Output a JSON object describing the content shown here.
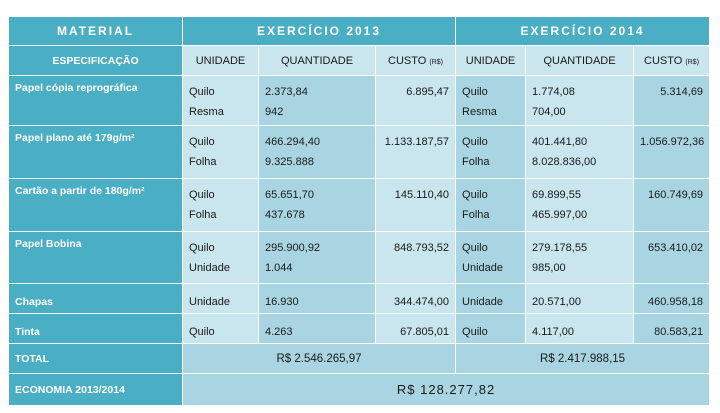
{
  "header": {
    "material": "MATERIAL",
    "year2013": "EXERCÍCIO 2013",
    "year2014": "EXERCÍCIO 2014"
  },
  "columns": {
    "spec": "ESPECIFICAÇÃO",
    "unit": "UNIDADE",
    "qty": "QUANTIDADE",
    "cost": "CUSTO",
    "cost_unit": "(R$)"
  },
  "rows": [
    {
      "label": "Papel cópia reprográfica",
      "u13": [
        "Quilo",
        "Resma"
      ],
      "q13": [
        "2.373,84",
        "942"
      ],
      "c13": "6.895,47",
      "u14": [
        "Quilo",
        "Resma"
      ],
      "q14": [
        "1.774,08",
        "704,00"
      ],
      "c14": "5.314,69"
    },
    {
      "label": "Papel plano até 179g/m²",
      "u13": [
        "Quilo",
        "Folha"
      ],
      "q13": [
        "466.294,40",
        "9.325.888"
      ],
      "c13": "1.133.187,57",
      "u14": [
        "Quilo",
        "Folha"
      ],
      "q14": [
        "401.441,80",
        "8.028.836,00"
      ],
      "c14": "1.056.972,36"
    },
    {
      "label": "Cartão a partir de 180g/m²",
      "u13": [
        "Quilo",
        "Folha"
      ],
      "q13": [
        "65.651,70",
        "437.678"
      ],
      "c13": "145.110,40",
      "u14": [
        "Quilo",
        "Folha"
      ],
      "q14": [
        "69.899,55",
        "465.997,00"
      ],
      "c14": "160.749,69"
    },
    {
      "label": "Papel Bobina",
      "u13": [
        "Quilo",
        "Unidade"
      ],
      "q13": [
        "295.900,92",
        "1.044"
      ],
      "c13": "848.793,52",
      "u14": [
        "Quilo",
        "Unidade"
      ],
      "q14": [
        "279.178,55",
        "985,00"
      ],
      "c14": "653.410,02"
    },
    {
      "label": "Chapas",
      "u13": [
        "Unidade"
      ],
      "q13": [
        "16.930"
      ],
      "c13": "344.474,00",
      "u14": [
        "Unidade"
      ],
      "q14": [
        "20.571,00"
      ],
      "c14": "460.958,18"
    },
    {
      "label": "Tinta",
      "u13": [
        "Quilo"
      ],
      "q13": [
        "4.263"
      ],
      "c13": "67.805,01",
      "u14": [
        "Quilo"
      ],
      "q14": [
        "4.117,00"
      ],
      "c14": "80.583,21"
    }
  ],
  "total": {
    "label": "TOTAL",
    "v2013": "R$ 2.546.265,97",
    "v2014": "R$ 2.417.988,15"
  },
  "economy": {
    "label": "ECONOMIA 2013/2014",
    "value": "R$ 128.277,82"
  },
  "colors": {
    "header_bg": "#4aaec4",
    "light_cell": "#c9e5ee",
    "dark_cell": "#a9d5e2"
  }
}
